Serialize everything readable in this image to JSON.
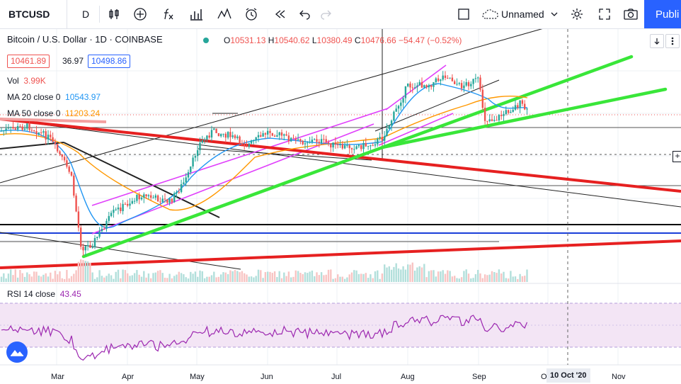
{
  "toolbar": {
    "symbol": "BTCUSD",
    "interval": "D",
    "layout_name": "Unnamed",
    "publish_label": "Publi",
    "icons": [
      "bar-chart-icon",
      "plus-circle-icon",
      "fx-icon",
      "compare-icon",
      "indicators-icon",
      "alert-clock-icon",
      "replay-icon",
      "undo-icon",
      "redo-icon",
      "layout-square-icon",
      "cloud-icon",
      "chevron-down-icon",
      "settings-icon",
      "fullscreen-icon",
      "camera-icon"
    ]
  },
  "header": {
    "title": "Bitcoin / U.S. Dollar · 1D · COINBASE",
    "status_dot_color": "#26a69a",
    "ohlc": {
      "o_label": "O",
      "o": "10531.13",
      "h_label": "H",
      "h": "10540.62",
      "l_label": "L",
      "l": "10380.49",
      "c_label": "C",
      "c": "10476.66",
      "change": "−54.47 (−0.52%)"
    },
    "price_tags": {
      "bid": "10461.89",
      "spread": "36.97",
      "ask": "10498.86"
    }
  },
  "indicators": {
    "vol": {
      "label": "Vol",
      "value": "3.99K"
    },
    "ma20": {
      "label": "MA 20 close 0",
      "value": "10543.97",
      "color": "#2196f3"
    },
    "ma50": {
      "label": "MA 50 close 0",
      "value": "11203.24",
      "color": "#ff9800"
    },
    "rsi": {
      "label": "RSI 14 close",
      "value": "43.45",
      "color": "#9c27b0"
    }
  },
  "x_axis": {
    "labels": [
      "Mar",
      "Apr",
      "May",
      "Jun",
      "Jul",
      "Aug",
      "Sep",
      "O",
      "Nov"
    ],
    "crosshair_date": "10 Oct '20"
  },
  "colors": {
    "up_candle": "#26a69a",
    "down_candle": "#ef5350",
    "trend_green": "#39e639",
    "trend_red": "#e62020",
    "channel_magenta": "#e040fb",
    "rsi_band": "#f3e5f5",
    "price_axis_blue": "#2962ff"
  }
}
